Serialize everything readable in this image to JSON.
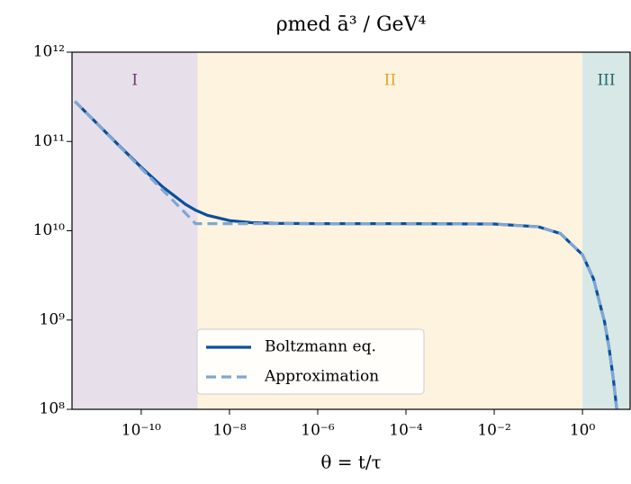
{
  "chart_data": {
    "type": "line",
    "title": "ρmed ā³ / GeV⁴",
    "xlabel": "θ = t/τ",
    "xscale": "log",
    "yscale": "log",
    "xlim": [
      2.7e-12,
      12
    ],
    "ylim": [
      100000000.0,
      1000000000000.0
    ],
    "xticks": [
      {
        "value": 1e-10,
        "label": "10⁻¹⁰"
      },
      {
        "value": 1e-08,
        "label": "10⁻⁸"
      },
      {
        "value": 1e-06,
        "label": "10⁻⁶"
      },
      {
        "value": 0.0001,
        "label": "10⁻⁴"
      },
      {
        "value": 0.01,
        "label": "10⁻²"
      },
      {
        "value": 1,
        "label": "10⁰"
      }
    ],
    "yticks": [
      {
        "value": 100000000.0,
        "label": "10⁸"
      },
      {
        "value": 1000000000.0,
        "label": "10⁹"
      },
      {
        "value": 10000000000.0,
        "label": "10¹⁰"
      },
      {
        "value": 100000000000.0,
        "label": "10¹¹"
      },
      {
        "value": 1000000000000.0,
        "label": "10¹²"
      }
    ],
    "regions": [
      {
        "label": "I",
        "start": 2.7e-12,
        "end": 1.9e-09,
        "color": "#e7e0ea",
        "text_color": "#6b3a6b"
      },
      {
        "label": "II",
        "start": 1.9e-09,
        "end": 1,
        "color": "#fdf3df",
        "text_color": "#e3a52b"
      },
      {
        "label": "III",
        "start": 1,
        "end": 12,
        "color": "#d8e8e6",
        "text_color": "#1e6a6a"
      }
    ],
    "legend": "lower center",
    "x": [
      3.16e-12,
      1e-11,
      3.16e-11,
      1e-10,
      3.16e-10,
      1e-09,
      1.7e-09,
      3.16e-09,
      1e-08,
      3.16e-08,
      1e-07,
      1e-06,
      0.0001,
      0.01,
      0.1,
      0.316,
      1,
      1.78,
      3.16,
      3.98,
      5.01,
      6.03
    ],
    "series": [
      {
        "name": "Boltzmann eq.",
        "color": "#0b4f9c",
        "dash": false,
        "values": [
          281000000000.0,
          158500000000.0,
          89700000000.0,
          51400000000.0,
          30600000000.0,
          19800000000.0,
          17000000000.0,
          14900000000.0,
          13000000000.0,
          12320000000.0,
          12100000000.0,
          12000000000.0,
          12000000000.0,
          11900000000.0,
          11080000000.0,
          9320000000.0,
          5390000000.0,
          2890000000.0,
          956000000.0,
          497000000.0,
          218000000.0,
          96700000.0
        ]
      },
      {
        "name": "Approximation",
        "color": "#7fa6d3",
        "dash": true,
        "values": [
          281000000000.0,
          158000000000.0,
          88900000000.0,
          50000000000.0,
          28100000000.0,
          15800000000.0,
          12000000000.0,
          12000000000.0,
          12000000000.0,
          12000000000.0,
          12000000000.0,
          12000000000.0,
          12000000000.0,
          11900000000.0,
          11080000000.0,
          9320000000.0,
          5390000000.0,
          2890000000.0,
          956000000.0,
          497000000.0,
          218000000.0,
          96700000.0
        ]
      }
    ]
  }
}
